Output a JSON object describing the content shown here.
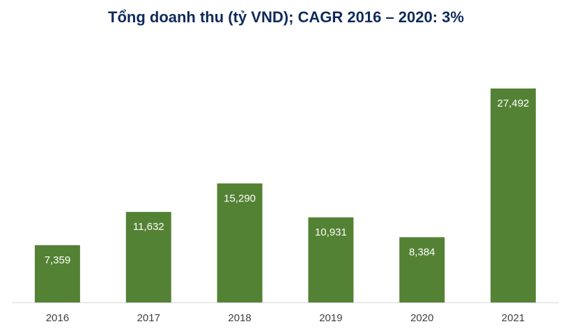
{
  "chart_data": {
    "type": "bar",
    "title": "Tổng doanh thu (tỷ VND); CAGR 2016 – 2020: 3%",
    "categories": [
      "2016",
      "2017",
      "2018",
      "2019",
      "2020",
      "2021"
    ],
    "series": [
      {
        "values": [
          7359,
          11632,
          15290,
          10931,
          8384,
          27492
        ],
        "labels": [
          "7,359",
          "11,632",
          "15,290",
          "10,931",
          "8,384",
          "27,492"
        ],
        "color": "#548235"
      }
    ],
    "ylim": [
      0,
      27492
    ],
    "grid": false,
    "legend": "none"
  }
}
